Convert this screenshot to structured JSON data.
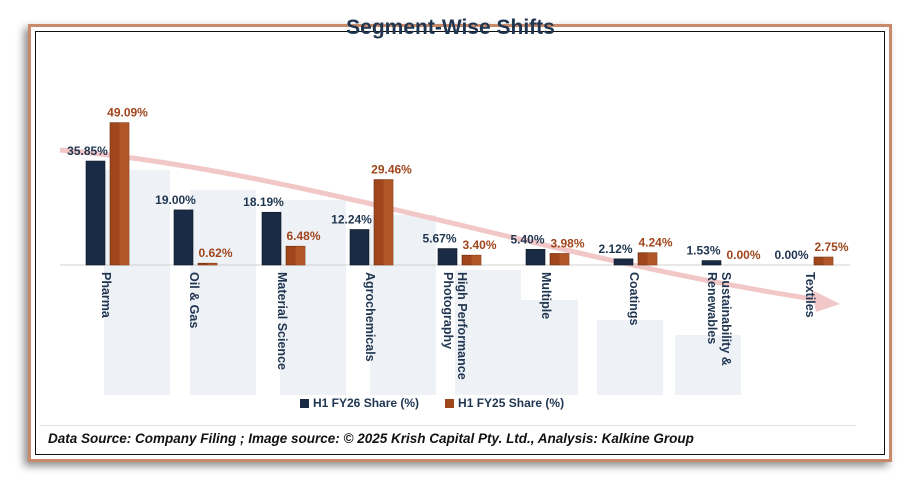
{
  "chart_data": {
    "type": "bar",
    "title": "Segment-Wise Shifts",
    "categories": [
      "Pharma",
      "Oil & Gas",
      "Material Science",
      "Agrochemicals",
      "High Performance Photography",
      "Multiple",
      "Coatings",
      "Sustainability & Renewables",
      "Textiles"
    ],
    "category_lines": [
      [
        "Pharma"
      ],
      [
        "Oil & Gas"
      ],
      [
        "Material Science"
      ],
      [
        "Agrochemicals"
      ],
      [
        "High Performance",
        "Photography"
      ],
      [
        "Multiple"
      ],
      [
        "Coatings"
      ],
      [
        "Sustainability &",
        "Renewables"
      ],
      [
        "Textiles"
      ]
    ],
    "series": [
      {
        "name": "H1 FY26 Share (%)",
        "color": "#1a2b45",
        "values": [
          35.85,
          19.0,
          18.19,
          12.24,
          5.67,
          5.4,
          2.12,
          1.53,
          0.0
        ],
        "labels": [
          "35.85%",
          "19.00%",
          "18.19%",
          "12.24%",
          "5.67%",
          "5.40%",
          "2.12%",
          "1.53%",
          "0.00%"
        ]
      },
      {
        "name": "H1 FY25 Share (%)",
        "color": "#a0461c",
        "values": [
          49.09,
          0.62,
          6.48,
          29.46,
          3.4,
          3.98,
          4.24,
          0.0,
          2.75
        ],
        "labels": [
          "49.09%",
          "0.62%",
          "6.48%",
          "29.46%",
          "3.40%",
          "3.98%",
          "4.24%",
          "0.00%",
          "2.75%"
        ]
      }
    ],
    "xlabel": "",
    "ylabel": "",
    "ylim": [
      0,
      55
    ],
    "grid": false,
    "legend": "bottom"
  },
  "footer": "Data Source: Company Filing ; Image source: © 2025 Krish Capital Pty. Ltd., Analysis: Kalkine Group"
}
